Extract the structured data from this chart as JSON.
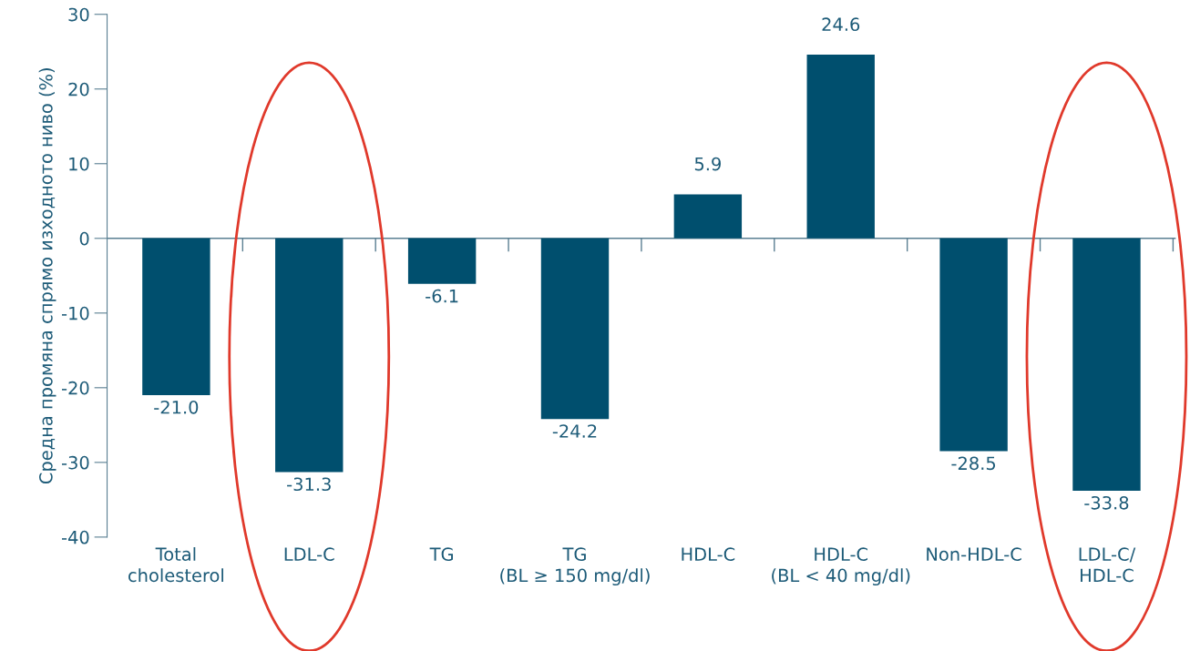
{
  "chart_data": {
    "type": "bar",
    "ylabel": "Средна промяна спрямо изходното ниво (%)",
    "categories": [
      "Total\ncholesterol",
      "LDL-C",
      "TG",
      "TG\n(BL ≥ 150 mg/dl)",
      "HDL-C",
      "HDL-C\n(BL < 40 mg/dl)",
      "Non-HDL-C",
      "LDL-C/\nHDL-C"
    ],
    "values": [
      -21.0,
      -31.3,
      -6.1,
      -24.2,
      5.9,
      24.6,
      -28.5,
      -33.8
    ],
    "value_labels": [
      "-21.0",
      "-31.3",
      "-6.1",
      "-24.2",
      "5.9",
      "24.6",
      "-28.5",
      "-33.8"
    ],
    "color": "#004f6e",
    "ylim": [
      -40,
      30
    ],
    "yticks": [
      -40,
      -30,
      -20,
      -10,
      0,
      10,
      20,
      30
    ],
    "ref_lines": [
      {
        "axis": "y",
        "value": 0,
        "color": "#5a7f92"
      }
    ],
    "grid": false,
    "legend": false
  }
}
